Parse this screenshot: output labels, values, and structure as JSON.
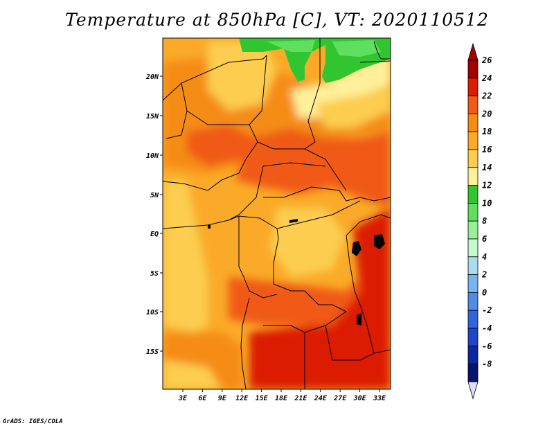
{
  "title": "Temperature at 850hPa [C], VT: 2020110512",
  "credit": "GrADS: IGES/COLA",
  "map": {
    "lat_ticks": [
      "20N",
      "15N",
      "10N",
      "5N",
      "EQ",
      "5S",
      "10S",
      "15S"
    ],
    "lon_ticks": [
      "3E",
      "6E",
      "9E",
      "12E",
      "15E",
      "18E",
      "21E",
      "24E",
      "27E",
      "30E",
      "33E"
    ]
  },
  "colorbar": {
    "levels": [
      {
        "label": "26",
        "color": "#a50000"
      },
      {
        "label": "24",
        "color": "#dc1e00"
      },
      {
        "label": "22",
        "color": "#f05a14"
      },
      {
        "label": "20",
        "color": "#f58c14"
      },
      {
        "label": "18",
        "color": "#faaa28"
      },
      {
        "label": "16",
        "color": "#fccd50"
      },
      {
        "label": "14",
        "color": "#fff09b"
      },
      {
        "label": "12",
        "color": "#31c631"
      },
      {
        "label": "10",
        "color": "#5ee05e"
      },
      {
        "label": "8",
        "color": "#96f096"
      },
      {
        "label": "6",
        "color": "#c8fad2"
      },
      {
        "label": "4",
        "color": "#aadcf0"
      },
      {
        "label": "2",
        "color": "#78b4f0"
      },
      {
        "label": "0",
        "color": "#508ce6"
      },
      {
        "label": "-2",
        "color": "#3264dc"
      },
      {
        "label": "-4",
        "color": "#1e46c8"
      },
      {
        "label": "-6",
        "color": "#0a28a0"
      },
      {
        "label": "-8",
        "color": "#06156e"
      }
    ],
    "below_color": "#dcdcf5",
    "top_color": "#a50000",
    "bottom_color": "#dcdcf5"
  }
}
